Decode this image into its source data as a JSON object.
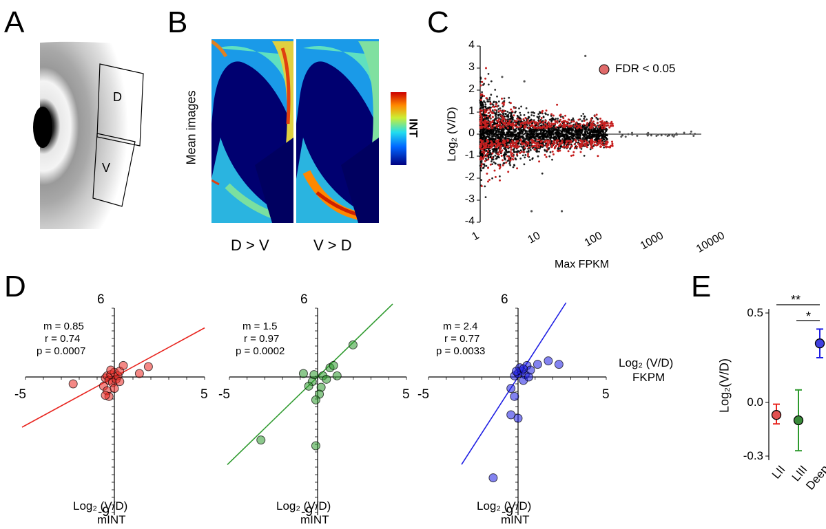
{
  "panels": {
    "A": "A",
    "B": "B",
    "C": "C",
    "D": "D",
    "E": "E"
  },
  "panelA": {
    "region_d": "D",
    "region_v": "V"
  },
  "panelB": {
    "ylabel": "Mean images",
    "left_caption": "D > V",
    "right_caption": "V > D",
    "colorbar_label": "INT"
  },
  "colors": {
    "red": "#e8251f",
    "green": "#2e9a2e",
    "blue": "#1d1de3",
    "fdr_point": "#e06a6a",
    "black_point": "#000000"
  },
  "chart_data": [
    {
      "id": "C",
      "type": "scatter",
      "xscale": "log",
      "xlabel": "Max FPKM",
      "ylabel": "Log₂ (V/D)",
      "xlim": [
        1,
        10000
      ],
      "ylim": [
        -4,
        4
      ],
      "xticks": [
        "1",
        "10",
        "100",
        "1000",
        "10000"
      ],
      "yticks": [
        "4",
        "3",
        "2",
        "1",
        "0",
        "-1",
        "-2",
        "-3",
        "-4"
      ],
      "legend": "FDR < 0.05",
      "legend_position": "top-right"
    },
    {
      "id": "D1",
      "type": "scatter",
      "xlim": [
        -5,
        5
      ],
      "ylim": [
        -9,
        6
      ],
      "xtick_labels": {
        "min": "-5",
        "max": "5"
      },
      "ytick_labels": {
        "top": "6",
        "bottom": "-9"
      },
      "stats": {
        "m": "m = 0.85",
        "r": "r = 0.74",
        "p": "p = 0.0007"
      },
      "slope": 0.85,
      "points": [
        [
          -2.3,
          -0.6
        ],
        [
          -0.5,
          -0.1
        ],
        [
          -0.4,
          0.1
        ],
        [
          -0.3,
          -0.3
        ],
        [
          -0.2,
          0.2
        ],
        [
          -0.1,
          -0.5
        ],
        [
          0,
          0.4
        ],
        [
          0.1,
          -0.2
        ],
        [
          -0.2,
          0.6
        ],
        [
          0.2,
          0.1
        ],
        [
          0.3,
          0.5
        ],
        [
          -0.6,
          -0.8
        ],
        [
          -0.4,
          -1.2
        ],
        [
          -0.3,
          -1.7
        ],
        [
          -0.5,
          -1.6
        ],
        [
          0.5,
          1.0
        ],
        [
          1.4,
          0.3
        ],
        [
          1.9,
          0.9
        ],
        [
          0.3,
          -0.4
        ],
        [
          0,
          -1.0
        ]
      ]
    },
    {
      "id": "D2",
      "type": "scatter",
      "xlim": [
        -5,
        5
      ],
      "ylim": [
        -9,
        6
      ],
      "xtick_labels": {
        "min": "-5",
        "max": "5"
      },
      "ytick_labels": {
        "top": "6",
        "bottom": "-9"
      },
      "stats": {
        "m": "m = 1.5",
        "r": "r = 0.97",
        "p": "p = 0.0002"
      },
      "slope": 1.5,
      "points": [
        [
          -0.8,
          0.3
        ],
        [
          -0.3,
          -0.4
        ],
        [
          -0.2,
          0.2
        ],
        [
          0.2,
          -0.9
        ],
        [
          0.3,
          0.1
        ],
        [
          0.5,
          -0.2
        ],
        [
          -0.5,
          -0.8
        ],
        [
          0.1,
          -1.5
        ],
        [
          -0.1,
          -2.0
        ],
        [
          0.7,
          0.8
        ],
        [
          0.9,
          1.0
        ],
        [
          1.1,
          0.1
        ],
        [
          2.0,
          2.8
        ],
        [
          -3.2,
          -5.5
        ],
        [
          -0.1,
          -6.0
        ]
      ]
    },
    {
      "id": "D3",
      "type": "scatter",
      "xlim": [
        -5,
        5
      ],
      "ylim": [
        -9,
        6
      ],
      "xtick_labels": {
        "min": "-5",
        "max": "5"
      },
      "ytick_labels": {
        "top": "6",
        "bottom": "-9"
      },
      "stats": {
        "m": "m = 2.4",
        "r": "r = 0.77",
        "p": "p = 0.0033"
      },
      "slope": 2.4,
      "points": [
        [
          -0.2,
          0.1
        ],
        [
          0,
          0.3
        ],
        [
          0.2,
          0.5
        ],
        [
          0.4,
          0.2
        ],
        [
          0.3,
          -0.3
        ],
        [
          0.1,
          0.8
        ],
        [
          0.5,
          1.0
        ],
        [
          0.7,
          0.6
        ],
        [
          1.1,
          1.1
        ],
        [
          1.7,
          1.4
        ],
        [
          2.3,
          1.1
        ],
        [
          -0.4,
          -1.0
        ],
        [
          -0.2,
          -1.7
        ],
        [
          -0.4,
          -3.3
        ],
        [
          0.0,
          -3.6
        ],
        [
          0.3,
          0.7
        ],
        [
          0.6,
          0.0
        ],
        [
          -0.1,
          0.5
        ],
        [
          -1.4,
          -8.8
        ]
      ]
    },
    {
      "id": "E",
      "type": "scatter",
      "ylabel": "Log₂(V/D)",
      "categories": [
        "LII",
        "LIII",
        "Deep"
      ],
      "values": [
        -0.07,
        -0.1,
        0.33
      ],
      "err_low": [
        -0.12,
        -0.27,
        0.25
      ],
      "err_high": [
        -0.01,
        0.07,
        0.41
      ],
      "ylim": [
        -0.3,
        0.5
      ],
      "yticks": [
        "0.5",
        "0.0",
        "-0.3"
      ],
      "significance": [
        {
          "pair": [
            "LII",
            "Deep"
          ],
          "label": "**"
        },
        {
          "pair": [
            "LIII",
            "Deep"
          ],
          "label": "*"
        }
      ]
    }
  ],
  "shared_labels": {
    "d_xlabel": "Log₂ (V/D)",
    "d_xlabel_sub": "mINT",
    "d_ylabel": "Log₂ (V/D)",
    "d_ylabel_sub": "FKPM"
  }
}
